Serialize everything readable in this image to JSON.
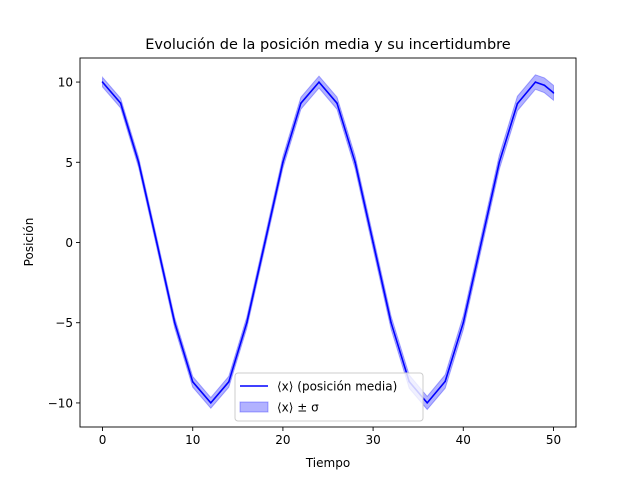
{
  "chart_data": {
    "type": "line",
    "title": "Evolución de la posición media y su incertidumbre",
    "xlabel": "Tiempo",
    "ylabel": "Posición",
    "xlim": [
      -2.5,
      52.5
    ],
    "ylim": [
      -11.5,
      11.5
    ],
    "xticks": [
      0,
      10,
      20,
      30,
      40,
      50
    ],
    "yticks": [
      -10,
      -5,
      0,
      5,
      10
    ],
    "ytick_labels": [
      "−10",
      "−5",
      "0",
      "5",
      "10"
    ],
    "grid": false,
    "legend_position": "lower center",
    "colors": {
      "line": "#0000ff",
      "band": "#0000ff"
    },
    "series": [
      {
        "name": "⟨x⟩ (posición media)",
        "kind": "line",
        "x": [
          0,
          2,
          4,
          6,
          8,
          10,
          12,
          14,
          16,
          18,
          20,
          22,
          24,
          26,
          28,
          30,
          32,
          34,
          36,
          38,
          40,
          42,
          44,
          46,
          48,
          49,
          50
        ],
        "y": [
          10.0,
          8.69,
          5.0,
          0.02,
          -5.0,
          -8.68,
          -10.0,
          -8.68,
          -5.0,
          0.0,
          5.0,
          8.68,
          10.0,
          8.68,
          5.0,
          0.0,
          -5.0,
          -8.67,
          -10.0,
          -8.66,
          -5.0,
          0.0,
          5.0,
          8.66,
          10.0,
          9.8,
          9.33
        ]
      },
      {
        "name": "⟨x⟩ ± σ",
        "kind": "band",
        "x": [
          0,
          2,
          4,
          6,
          8,
          10,
          12,
          14,
          16,
          18,
          20,
          22,
          24,
          26,
          28,
          30,
          32,
          34,
          36,
          38,
          40,
          42,
          44,
          46,
          48,
          49,
          50
        ],
        "sigma": [
          0.3,
          0.3,
          0.31,
          0.31,
          0.32,
          0.33,
          0.33,
          0.34,
          0.35,
          0.35,
          0.36,
          0.37,
          0.37,
          0.38,
          0.39,
          0.39,
          0.4,
          0.41,
          0.41,
          0.42,
          0.43,
          0.43,
          0.44,
          0.45,
          0.45,
          0.46,
          0.46
        ]
      }
    ]
  }
}
